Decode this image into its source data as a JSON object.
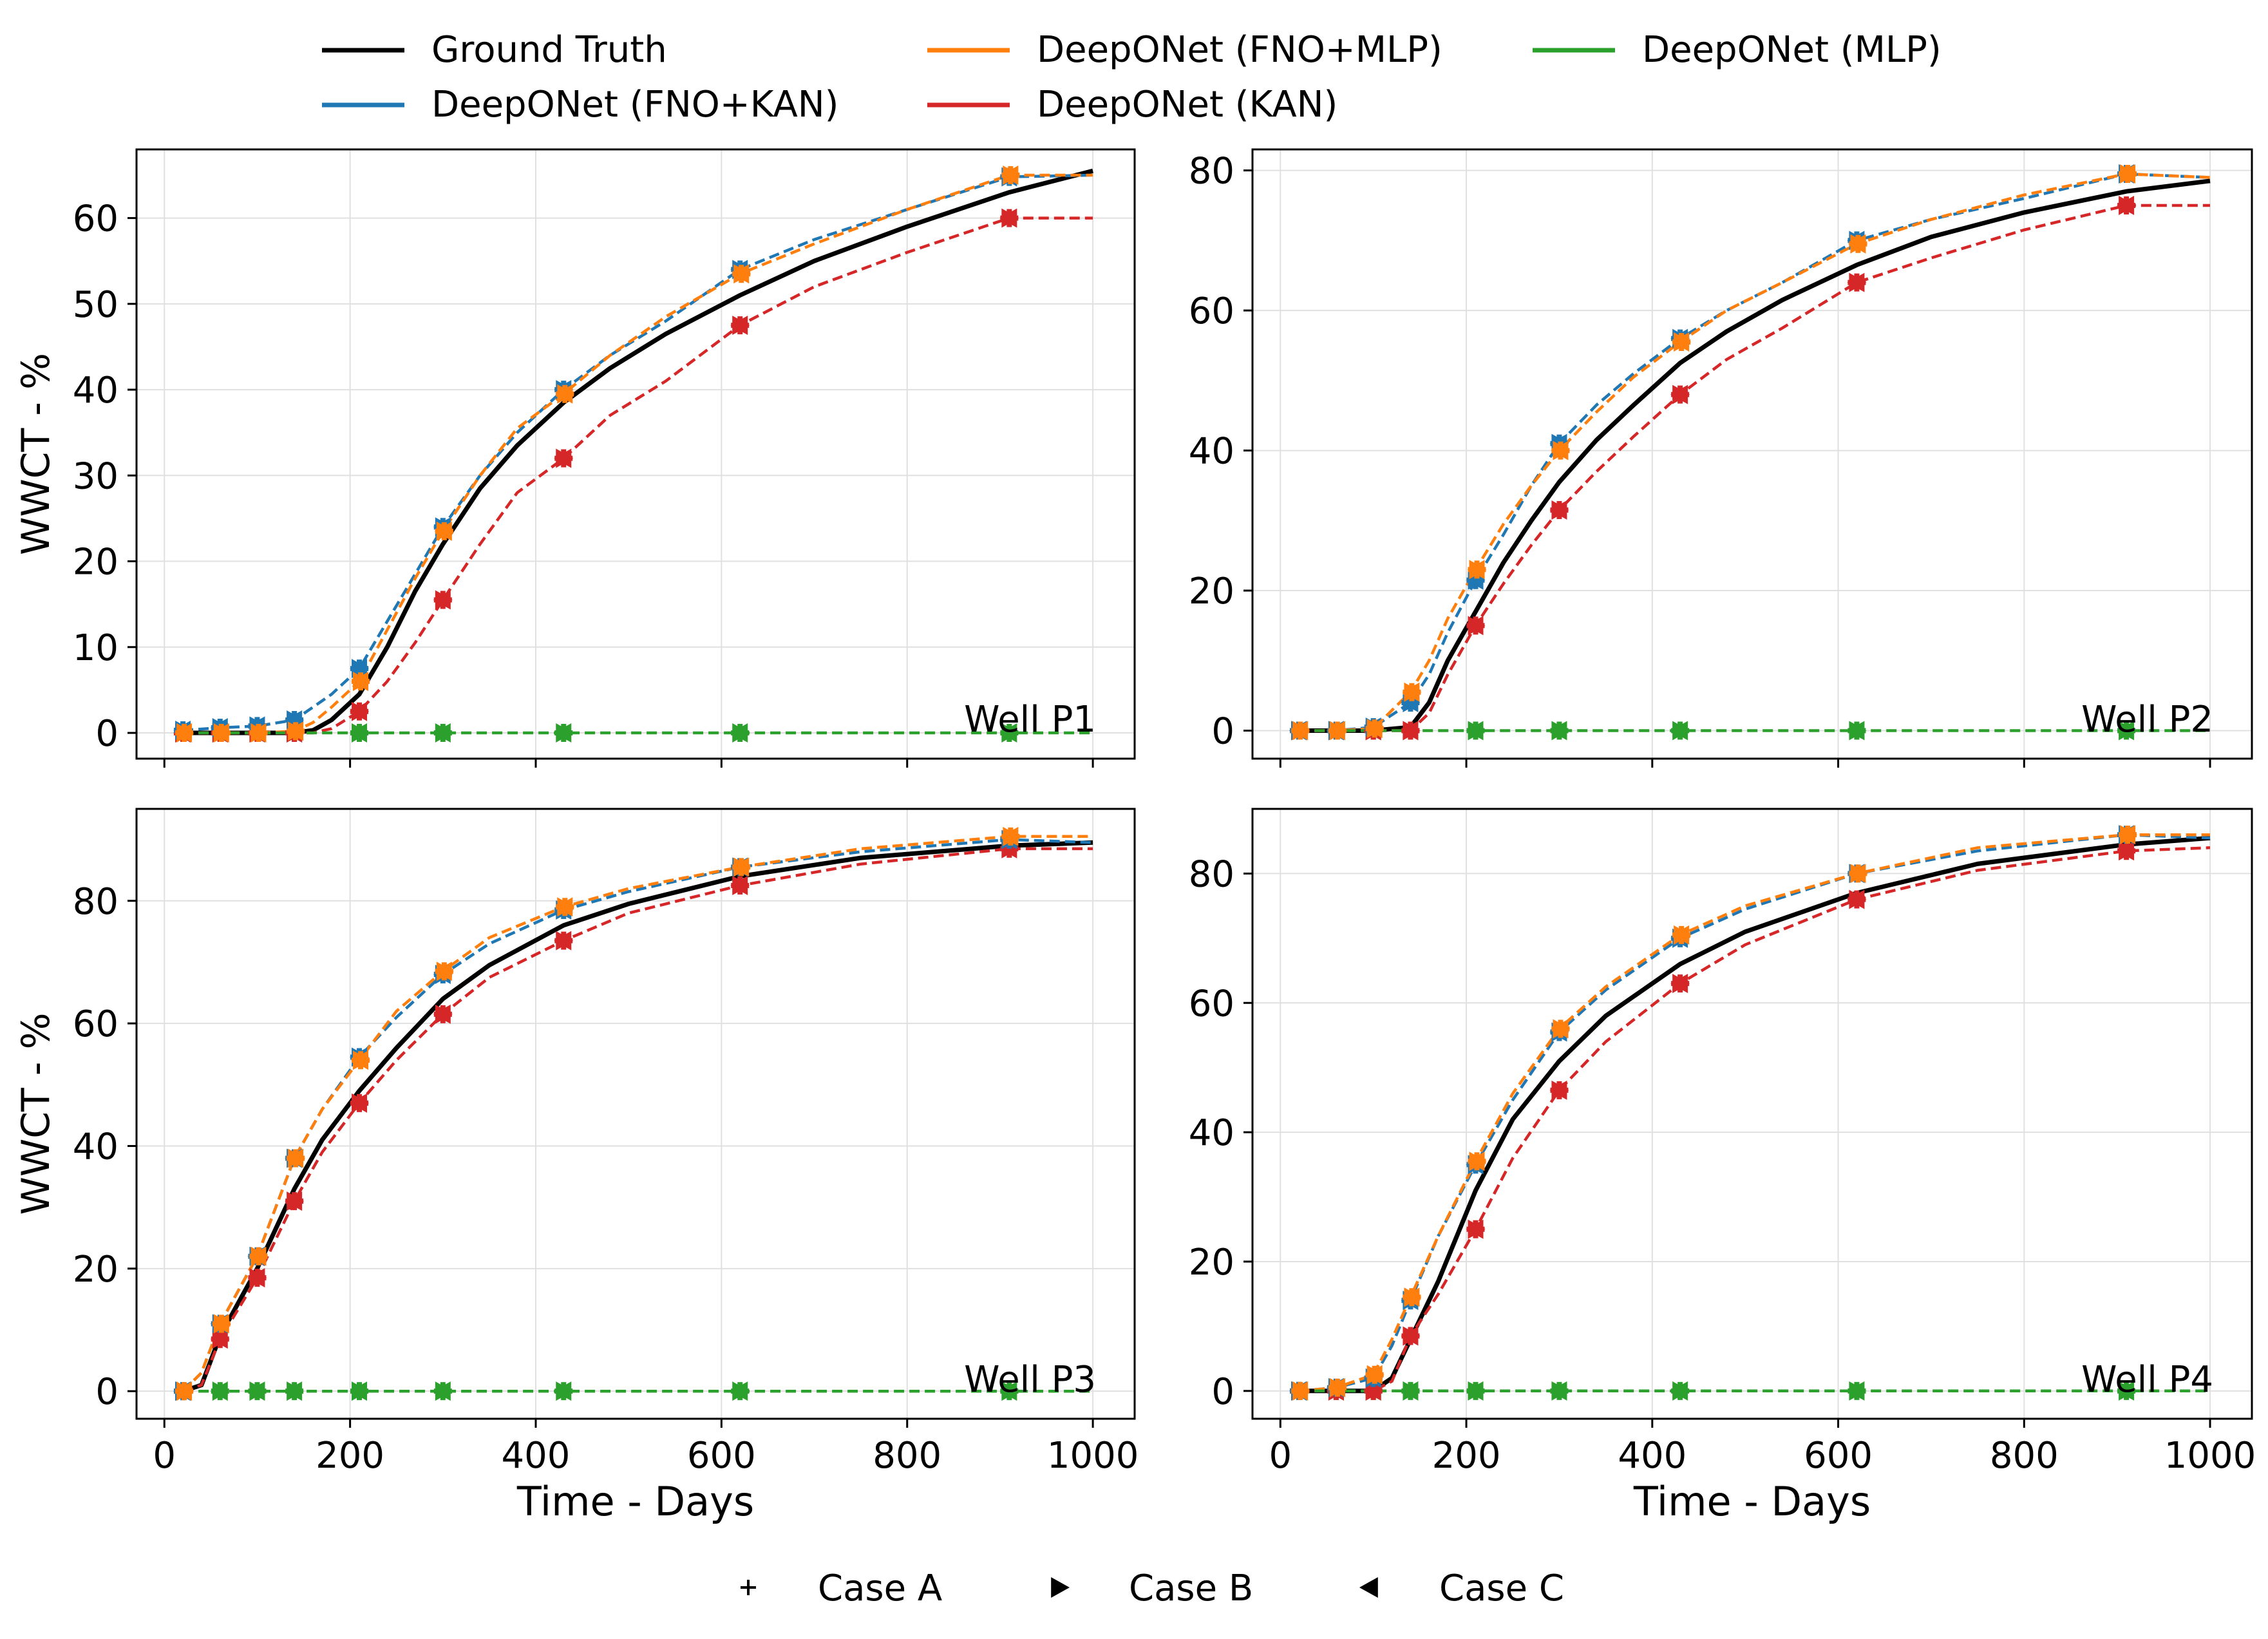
{
  "figure": {
    "legend_top": [
      {
        "label": "Ground Truth",
        "color": "#000000"
      },
      {
        "label": "DeepONet (FNO+MLP)",
        "color": "#ff7f0e"
      },
      {
        "label": "DeepONet (MLP)",
        "color": "#2ca02c"
      },
      {
        "label": "DeepONet (FNO+KAN)",
        "color": "#1f77b4"
      },
      {
        "label": "DeepONet (KAN)",
        "color": "#d62728"
      }
    ],
    "legend_bottom": [
      {
        "label": "Case A",
        "marker": "plus"
      },
      {
        "label": "Case B",
        "marker": "triangle-right"
      },
      {
        "label": "Case C",
        "marker": "triangle-left"
      }
    ]
  },
  "chart_data": [
    {
      "type": "line",
      "annotation": "Well P1",
      "ylabel": "WWCT - %",
      "xlabel": "",
      "xlim": [
        -30,
        1045
      ],
      "ylim": [
        -3,
        68
      ],
      "xticks": [
        0,
        200,
        400,
        600,
        800,
        1000
      ],
      "yticks": [
        0,
        10,
        20,
        30,
        40,
        50,
        60
      ],
      "show_xticklabels": false,
      "x": [
        20,
        60,
        100,
        140,
        160,
        180,
        210,
        240,
        270,
        300,
        340,
        380,
        430,
        480,
        540,
        620,
        700,
        800,
        910,
        1000
      ],
      "series": [
        {
          "name": "Ground Truth",
          "color": "#000000",
          "style": "solid",
          "values": [
            0,
            0,
            0,
            0,
            0.3,
            1.5,
            4.5,
            10,
            16.5,
            22,
            28.5,
            33.5,
            38.5,
            42.5,
            46.5,
            51,
            55,
            59,
            63,
            65.5
          ]
        },
        {
          "name": "DeepONet (FNO+KAN)",
          "color": "#1f77b4",
          "style": "dashed",
          "values": [
            0.3,
            0.6,
            0.8,
            1.5,
            3,
            4.5,
            7.5,
            13,
            18.5,
            24,
            30,
            35,
            40,
            44,
            48,
            54,
            57.5,
            61,
            64.8,
            65
          ]
        },
        {
          "name": "DeepONet (FNO+MLP)",
          "color": "#ff7f0e",
          "style": "dashed",
          "values": [
            0,
            0,
            0,
            0.2,
            1.2,
            3,
            6,
            12,
            18,
            23.5,
            30,
            35.5,
            39.5,
            44,
            48.5,
            53.5,
            57,
            61,
            65,
            65
          ]
        },
        {
          "name": "DeepONet (KAN)",
          "color": "#d62728",
          "style": "dashed",
          "values": [
            0,
            0,
            0,
            0,
            0,
            0.5,
            2.5,
            6,
            10.5,
            15.5,
            22,
            28,
            32,
            37,
            41,
            47.5,
            52,
            56,
            60,
            60
          ]
        },
        {
          "name": "DeepONet (MLP)",
          "color": "#2ca02c",
          "style": "dashed",
          "values": [
            0,
            0,
            0,
            0,
            0,
            0,
            0,
            0,
            0,
            0,
            0,
            0,
            0,
            0,
            0,
            0,
            0,
            0,
            0,
            0
          ]
        }
      ],
      "marker_x": [
        20,
        60,
        100,
        140,
        210,
        300,
        430,
        620,
        910
      ]
    },
    {
      "type": "line",
      "annotation": "Well P2",
      "ylabel": "",
      "xlabel": "",
      "xlim": [
        -30,
        1045
      ],
      "ylim": [
        -4,
        83
      ],
      "xticks": [
        0,
        200,
        400,
        600,
        800,
        1000
      ],
      "yticks": [
        0,
        20,
        40,
        60,
        80
      ],
      "show_xticklabels": false,
      "x": [
        20,
        60,
        100,
        140,
        160,
        180,
        210,
        240,
        270,
        300,
        340,
        380,
        430,
        480,
        540,
        620,
        700,
        800,
        910,
        1000
      ],
      "series": [
        {
          "name": "Ground Truth",
          "color": "#000000",
          "style": "solid",
          "values": [
            0,
            0,
            0,
            0.5,
            4,
            10,
            17,
            24,
            30,
            35.5,
            41.5,
            46.5,
            52.5,
            57,
            61.5,
            66.5,
            70.5,
            74,
            77,
            78.5
          ]
        },
        {
          "name": "DeepONet (FNO+KAN)",
          "color": "#1f77b4",
          "style": "dashed",
          "values": [
            0,
            0,
            0.5,
            4,
            8,
            14,
            21.5,
            28,
            35,
            41,
            46.5,
            51,
            56,
            60,
            64,
            70,
            73,
            76,
            79.5,
            79
          ]
        },
        {
          "name": "DeepONet (FNO+MLP)",
          "color": "#ff7f0e",
          "style": "dashed",
          "values": [
            0,
            0,
            0.3,
            5.5,
            10,
            16,
            23,
            29.5,
            35,
            40,
            45.5,
            50.5,
            55.5,
            60,
            64,
            69.5,
            73,
            76.5,
            79.5,
            79
          ]
        },
        {
          "name": "DeepONet (KAN)",
          "color": "#d62728",
          "style": "dashed",
          "values": [
            0,
            0,
            0,
            0,
            2.5,
            8,
            15,
            21,
            26.5,
            31.5,
            37,
            42,
            48,
            53,
            57.5,
            64,
            67.5,
            71.5,
            75,
            75
          ]
        },
        {
          "name": "DeepONet (MLP)",
          "color": "#2ca02c",
          "style": "dashed",
          "values": [
            0,
            0,
            0,
            0,
            0,
            0,
            0,
            0,
            0,
            0,
            0,
            0,
            0,
            0,
            0,
            0,
            0,
            0,
            0,
            0
          ]
        }
      ],
      "marker_x": [
        20,
        60,
        100,
        140,
        210,
        300,
        430,
        620,
        910
      ]
    },
    {
      "type": "line",
      "annotation": "Well P3",
      "ylabel": "WWCT - %",
      "xlabel": "Time - Days",
      "xlim": [
        -30,
        1045
      ],
      "ylim": [
        -4.5,
        95
      ],
      "xticks": [
        0,
        200,
        400,
        600,
        800,
        1000
      ],
      "yticks": [
        0,
        20,
        40,
        60,
        80
      ],
      "show_xticklabels": true,
      "x": [
        20,
        40,
        60,
        100,
        140,
        170,
        210,
        250,
        300,
        350,
        430,
        500,
        620,
        750,
        910,
        1000
      ],
      "series": [
        {
          "name": "Ground Truth",
          "color": "#000000",
          "style": "solid",
          "values": [
            0,
            1,
            9,
            20,
            33,
            41,
            49,
            56,
            64,
            69.5,
            76,
            79.5,
            84,
            87,
            89,
            89.5
          ]
        },
        {
          "name": "DeepONet (FNO+KAN)",
          "color": "#1f77b4",
          "style": "dashed",
          "values": [
            0,
            3,
            11,
            22,
            38,
            46,
            54.5,
            61,
            68,
            73,
            78.5,
            81.5,
            85.5,
            88,
            90,
            89.5
          ]
        },
        {
          "name": "DeepONet (FNO+MLP)",
          "color": "#ff7f0e",
          "style": "dashed",
          "values": [
            0,
            3,
            11,
            22,
            38,
            46,
            54,
            62,
            68.5,
            74,
            79,
            82,
            85.5,
            88.5,
            90.5,
            90.5
          ]
        },
        {
          "name": "DeepONet (KAN)",
          "color": "#d62728",
          "style": "dashed",
          "values": [
            0,
            1,
            8.5,
            18.5,
            31,
            39,
            47,
            54,
            61.5,
            67.5,
            73.5,
            78,
            82.5,
            86,
            88.5,
            88.5
          ]
        },
        {
          "name": "DeepONet (MLP)",
          "color": "#2ca02c",
          "style": "dashed",
          "values": [
            0,
            0,
            0,
            0,
            0,
            0,
            0,
            0,
            0,
            0,
            0,
            0,
            0,
            0,
            0,
            0
          ]
        }
      ],
      "marker_x": [
        20,
        60,
        100,
        140,
        210,
        300,
        430,
        620,
        910
      ]
    },
    {
      "type": "line",
      "annotation": "Well P4",
      "ylabel": "",
      "xlabel": "Time - Days",
      "xlim": [
        -30,
        1045
      ],
      "ylim": [
        -4.3,
        90
      ],
      "xticks": [
        0,
        200,
        400,
        600,
        800,
        1000
      ],
      "yticks": [
        0,
        20,
        40,
        60,
        80
      ],
      "show_xticklabels": true,
      "x": [
        20,
        60,
        100,
        120,
        140,
        170,
        210,
        250,
        300,
        350,
        430,
        500,
        620,
        750,
        910,
        1000
      ],
      "series": [
        {
          "name": "Ground Truth",
          "color": "#000000",
          "style": "solid",
          "values": [
            0,
            0,
            0,
            2,
            8,
            17,
            31,
            42,
            51,
            58,
            66,
            71,
            77,
            81.5,
            84.5,
            85.5
          ]
        },
        {
          "name": "DeepONet (FNO+KAN)",
          "color": "#1f77b4",
          "style": "dashed",
          "values": [
            0,
            0.5,
            2,
            7,
            14,
            24,
            35,
            45,
            55.5,
            62,
            70,
            74.5,
            80,
            83.5,
            86,
            85.5
          ]
        },
        {
          "name": "DeepONet (FNO+MLP)",
          "color": "#ff7f0e",
          "style": "dashed",
          "values": [
            0,
            0.5,
            2.5,
            8,
            14.5,
            24,
            35.5,
            46,
            56,
            62.5,
            70.5,
            75,
            80,
            84,
            86,
            86
          ]
        },
        {
          "name": "DeepONet (KAN)",
          "color": "#d62728",
          "style": "dashed",
          "values": [
            0,
            0,
            0,
            1.5,
            8.5,
            15,
            25,
            36,
            46.5,
            54,
            63,
            69,
            76,
            80.5,
            83.5,
            84
          ]
        },
        {
          "name": "DeepONet (MLP)",
          "color": "#2ca02c",
          "style": "dashed",
          "values": [
            0,
            0,
            0,
            0,
            0,
            0,
            0,
            0,
            0,
            0,
            0,
            0,
            0,
            0,
            0,
            0
          ]
        }
      ],
      "marker_x": [
        20,
        60,
        100,
        140,
        210,
        300,
        430,
        620,
        910
      ]
    }
  ]
}
